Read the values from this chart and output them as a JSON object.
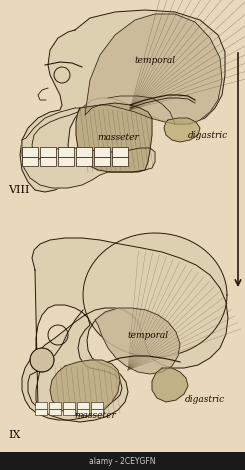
{
  "background_color": "#e8d9bc",
  "figure_width": 2.45,
  "figure_height": 4.7,
  "dpi": 100,
  "label_VIII": "VIII",
  "label_IX": "IX",
  "skull_line_color": "#2a1a0a",
  "muscle_hatch_color": "#6a5a3a",
  "temporal_fill": "#c8b898",
  "masseter_fill": "#b8a880",
  "skull_fill": "#ddd0b0",
  "bg_fill": "#e8d9bc",
  "watermark_text": "alamy - 2CEYGFN",
  "arrow_color": "#2a1a0a"
}
